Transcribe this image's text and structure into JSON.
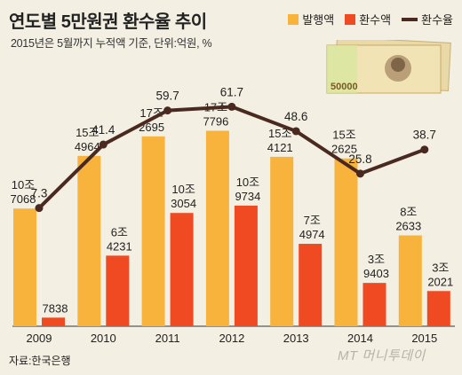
{
  "chart_data": {
    "type": "bar",
    "title": "연도별 5만원권 환수율 추이",
    "subtitle": "2015년은 5월까지 누적액 기준, 단위:억원, %",
    "categories": [
      "2009",
      "2010",
      "2011",
      "2012",
      "2013",
      "2014",
      "2015"
    ],
    "series": [
      {
        "name": "발행액",
        "kind": "bar",
        "values": [
          107068,
          154964,
          172695,
          177796,
          154121,
          152625,
          82633
        ],
        "labels_top": [
          "10조",
          "15조",
          "17조",
          "17조",
          "15조",
          "15조",
          "8조"
        ],
        "labels_bottom": [
          "7068",
          "4964",
          "2695",
          "7796",
          "4121",
          "2625",
          "2633"
        ],
        "color": "#f7b33b"
      },
      {
        "name": "환수액",
        "kind": "bar",
        "values": [
          7838,
          64231,
          103054,
          109734,
          74974,
          39403,
          32021
        ],
        "labels_top": [
          "",
          "6조",
          "10조",
          "10조",
          "7조",
          "3조",
          "3조"
        ],
        "labels_bottom": [
          "7838",
          "4231",
          "3054",
          "9734",
          "4974",
          "9403",
          "2021"
        ],
        "color": "#f04a23"
      },
      {
        "name": "환수율",
        "kind": "line",
        "values": [
          7.3,
          41.4,
          59.7,
          61.7,
          48.6,
          25.8,
          38.7
        ],
        "labels": [
          "7.3",
          "41.4",
          "59.7",
          "61.7",
          "48.6",
          "25.8",
          "38.7"
        ],
        "color": "#4a2a20"
      }
    ],
    "ylim_bars": [
      0,
      200000
    ],
    "ylim_line": [
      0,
      80
    ],
    "legend_position": "top-right",
    "grid": false
  },
  "source": "자료:한국은행",
  "watermark": "MT 머니투데이",
  "banknote_text": "50000"
}
